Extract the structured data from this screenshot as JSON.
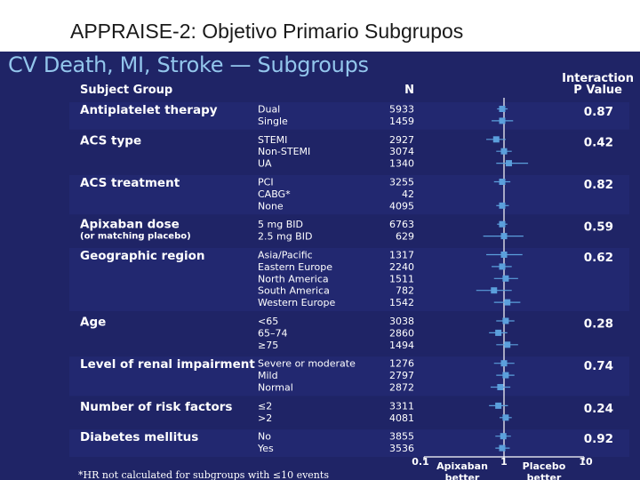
{
  "slide_title": "APPRAISE-2: Objetivo Primario Subgrupos",
  "chart_data": {
    "type": "forest",
    "title": "CV Death, MI, Stroke — Subgroups",
    "columns": {
      "group": "Subject Group",
      "n": "N",
      "p_line1": "Interaction",
      "p_line2": "P Value"
    },
    "x_scale": "log",
    "xlim": [
      0.1,
      10
    ],
    "x_ticks": [
      "0.1",
      "1",
      "10"
    ],
    "x_labels": {
      "left_line1": "Apixaban",
      "left_line2": "better",
      "right_line1": "Placebo",
      "right_line2": "better"
    },
    "footnote": "*HR not calculated for subgroups with ≤10 events",
    "groups": [
      {
        "label": "Antiplatelet therapy",
        "p": "0.87",
        "rows": [
          {
            "label": "Dual",
            "n": "5933",
            "hr": 0.95,
            "lo": 0.82,
            "hi": 1.11
          },
          {
            "label": "Single",
            "n": "1459",
            "hr": 0.95,
            "lo": 0.7,
            "hi": 1.3
          }
        ]
      },
      {
        "label": "ACS type",
        "p": "0.42",
        "rows": [
          {
            "label": "STEMI",
            "n": "2927",
            "hr": 0.8,
            "lo": 0.6,
            "hi": 1.05
          },
          {
            "label": "Non-STEMI",
            "n": "3074",
            "hr": 1.0,
            "lo": 0.8,
            "hi": 1.25
          },
          {
            "label": "UA",
            "n": "1340",
            "hr": 1.15,
            "lo": 0.8,
            "hi": 2.0
          }
        ]
      },
      {
        "label": "ACS treatment",
        "p": "0.82",
        "rows": [
          {
            "label": "PCI",
            "n": "3255",
            "hr": 0.95,
            "lo": 0.75,
            "hi": 1.2
          },
          {
            "label": "CABG*",
            "n": "42"
          },
          {
            "label": "None",
            "n": "4095",
            "hr": 0.95,
            "lo": 0.8,
            "hi": 1.15
          }
        ]
      },
      {
        "label": "Apixaban dose",
        "note": "(or matching placebo)",
        "p": "0.59",
        "rows": [
          {
            "label": "5 mg BID",
            "n": "6763",
            "hr": 0.95,
            "lo": 0.82,
            "hi": 1.1
          },
          {
            "label": "2.5 mg BID",
            "n": "629",
            "hr": 1.0,
            "lo": 0.55,
            "hi": 1.75
          }
        ]
      },
      {
        "label": "Geographic region",
        "p": "0.62",
        "rows": [
          {
            "label": "Asia/Pacific",
            "n": "1317",
            "hr": 1.0,
            "lo": 0.6,
            "hi": 1.7
          },
          {
            "label": "Eastern Europe",
            "n": "2240",
            "hr": 0.95,
            "lo": 0.7,
            "hi": 1.25
          },
          {
            "label": "North America",
            "n": "1511",
            "hr": 1.05,
            "lo": 0.75,
            "hi": 1.5
          },
          {
            "label": "South America",
            "n": "782",
            "hr": 0.75,
            "lo": 0.45,
            "hi": 1.25
          },
          {
            "label": "Western Europe",
            "n": "1542",
            "hr": 1.1,
            "lo": 0.75,
            "hi": 1.6
          }
        ]
      },
      {
        "label": "Age",
        "p": "0.28",
        "rows": [
          {
            "label": "<65",
            "n": "3038",
            "hr": 1.05,
            "lo": 0.8,
            "hi": 1.35
          },
          {
            "label": "65–74",
            "n": "2860",
            "hr": 0.85,
            "lo": 0.65,
            "hi": 1.1
          },
          {
            "label": "≥75",
            "n": "1494",
            "hr": 1.1,
            "lo": 0.8,
            "hi": 1.5
          }
        ]
      },
      {
        "label": "Level of renal impairment",
        "p": "0.74",
        "rows": [
          {
            "label": "Severe or moderate",
            "n": "1276",
            "hr": 1.0,
            "lo": 0.75,
            "hi": 1.35
          },
          {
            "label": "Mild",
            "n": "2797",
            "hr": 1.05,
            "lo": 0.8,
            "hi": 1.35
          },
          {
            "label": "Normal",
            "n": "2872",
            "hr": 0.9,
            "lo": 0.68,
            "hi": 1.2
          }
        ]
      },
      {
        "label": "Number of risk factors",
        "p": "0.24",
        "rows": [
          {
            "label": "≤2",
            "n": "3311",
            "hr": 0.85,
            "lo": 0.65,
            "hi": 1.12
          },
          {
            "label": ">2",
            "n": "4081",
            "hr": 1.05,
            "lo": 0.88,
            "hi": 1.25
          }
        ]
      },
      {
        "label": "Diabetes mellitus",
        "p": "0.92",
        "rows": [
          {
            "label": "No",
            "n": "3855",
            "hr": 0.98,
            "lo": 0.78,
            "hi": 1.22
          },
          {
            "label": "Yes",
            "n": "3536",
            "hr": 0.95,
            "lo": 0.78,
            "hi": 1.18
          }
        ]
      }
    ]
  },
  "colors": {
    "panel": "#1f2466",
    "band": "#222870",
    "title": "#93c6ec",
    "marker": "#5b9fdc",
    "text": "#ffffff"
  }
}
